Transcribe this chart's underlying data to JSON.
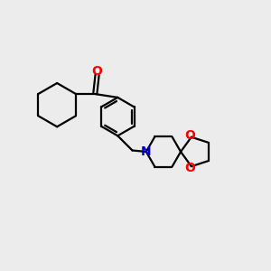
{
  "bg_color": "#ececec",
  "bond_color": "#000000",
  "O_color": "#ff0000",
  "N_color": "#0000cc",
  "line_width": 1.6,
  "figsize": [
    3.0,
    3.0
  ],
  "dpi": 100,
  "xlim": [
    0,
    10
  ],
  "ylim": [
    0,
    10
  ]
}
